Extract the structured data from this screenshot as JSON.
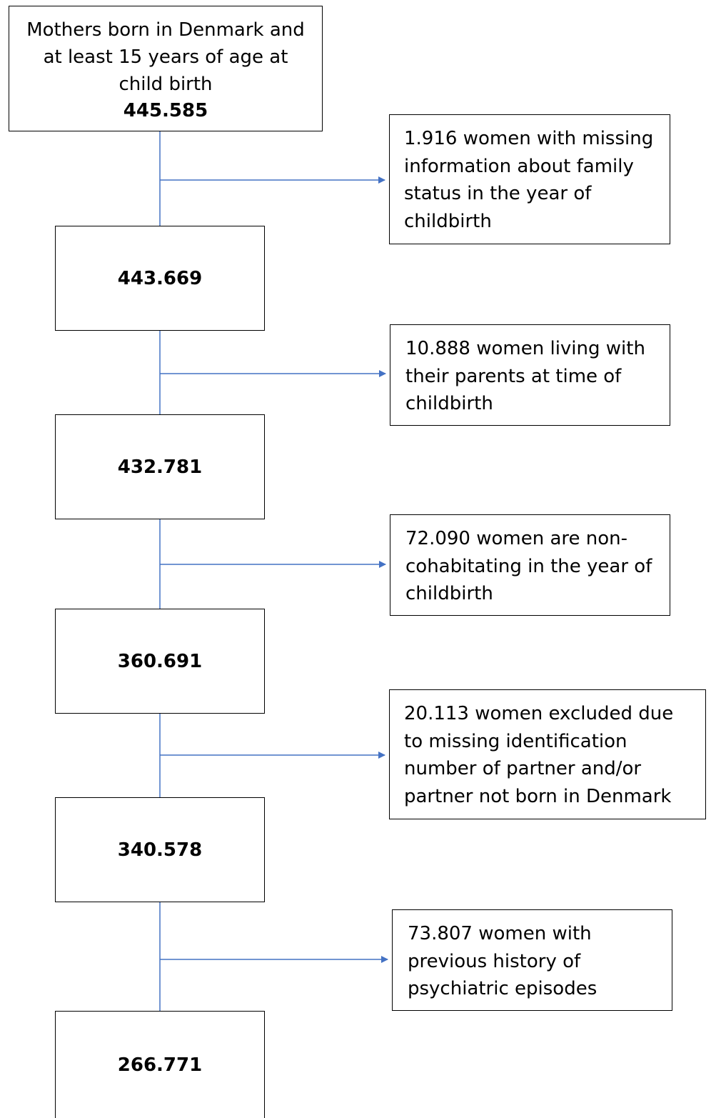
{
  "flow": {
    "start": {
      "lines": [
        "Mothers born in Denmark and",
        "at least 15 years of age at",
        "child birth"
      ],
      "count": "445.585"
    },
    "stages": [
      "443.669",
      "432.781",
      "360.691",
      "340.578",
      "266.771"
    ],
    "exclusions": [
      [
        "1.916 women with missing",
        "information about family",
        "status in the year of",
        "childbirth"
      ],
      [
        "10.888 women living with",
        "their parents at time of",
        "childbirth"
      ],
      [
        "72.090 women are non-",
        "cohabitating in the year of",
        "childbirth"
      ],
      [
        "20.113 women excluded due",
        "to missing identification",
        "number of partner and/or",
        "partner not born in Denmark"
      ],
      [
        "73.807 women with",
        "previous history of",
        "psychiatric episodes"
      ]
    ]
  },
  "colors": {
    "connector": "#4472C4",
    "border": "#000000"
  }
}
